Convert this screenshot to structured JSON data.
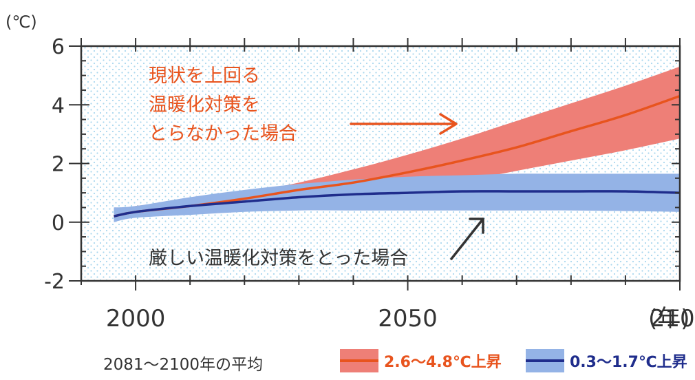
{
  "chart_data": {
    "type": "line",
    "unit_label": "(℃)",
    "x_unit_label": "(年)",
    "xlim": [
      1990,
      2100
    ],
    "ylim": [
      -2,
      6
    ],
    "xticks": [
      2000,
      2050,
      2100
    ],
    "yticks": [
      -2,
      0,
      2,
      4,
      6
    ],
    "background_pattern": "dotted-light-blue",
    "series": [
      {
        "key": "high",
        "color": "#e8541e",
        "band_color": "#ee7f77",
        "x": [
          1996,
          2000,
          2010,
          2020,
          2030,
          2040,
          2050,
          2060,
          2070,
          2080,
          2090,
          2100
        ],
        "mean": [
          0.2,
          0.35,
          0.55,
          0.8,
          1.1,
          1.35,
          1.7,
          2.1,
          2.55,
          3.1,
          3.65,
          4.3
        ],
        "lower": [
          0.05,
          0.2,
          0.4,
          0.6,
          0.75,
          0.9,
          1.1,
          1.4,
          1.75,
          2.1,
          2.45,
          2.85
        ],
        "upper": [
          0.4,
          0.55,
          0.75,
          1.0,
          1.35,
          1.8,
          2.3,
          2.85,
          3.45,
          4.05,
          4.65,
          5.3
        ]
      },
      {
        "key": "low",
        "color": "#1f2d8c",
        "band_color": "#94b3e6",
        "x": [
          1996,
          2000,
          2010,
          2020,
          2030,
          2040,
          2050,
          2060,
          2070,
          2080,
          2090,
          2100
        ],
        "mean": [
          0.2,
          0.35,
          0.55,
          0.7,
          0.85,
          0.95,
          1.0,
          1.05,
          1.05,
          1.05,
          1.05,
          1.0
        ],
        "lower": [
          0.0,
          0.15,
          0.25,
          0.35,
          0.4,
          0.4,
          0.4,
          0.4,
          0.4,
          0.4,
          0.38,
          0.35
        ],
        "upper": [
          0.5,
          0.55,
          0.85,
          1.1,
          1.3,
          1.45,
          1.55,
          1.6,
          1.65,
          1.65,
          1.65,
          1.65
        ]
      }
    ],
    "annotations": {
      "high_lines": [
        "現状を上回る",
        "温暖化対策を",
        "とらなかった場合"
      ],
      "low_line": "厳しい温暖化対策をとった場合"
    }
  },
  "legend": {
    "caption": "2081～2100年の平均",
    "high_label": "2.6～4.8℃上昇",
    "low_label": "0.3～1.7℃上昇",
    "high_color": "#e8541e",
    "low_color": "#1f2d8c"
  }
}
